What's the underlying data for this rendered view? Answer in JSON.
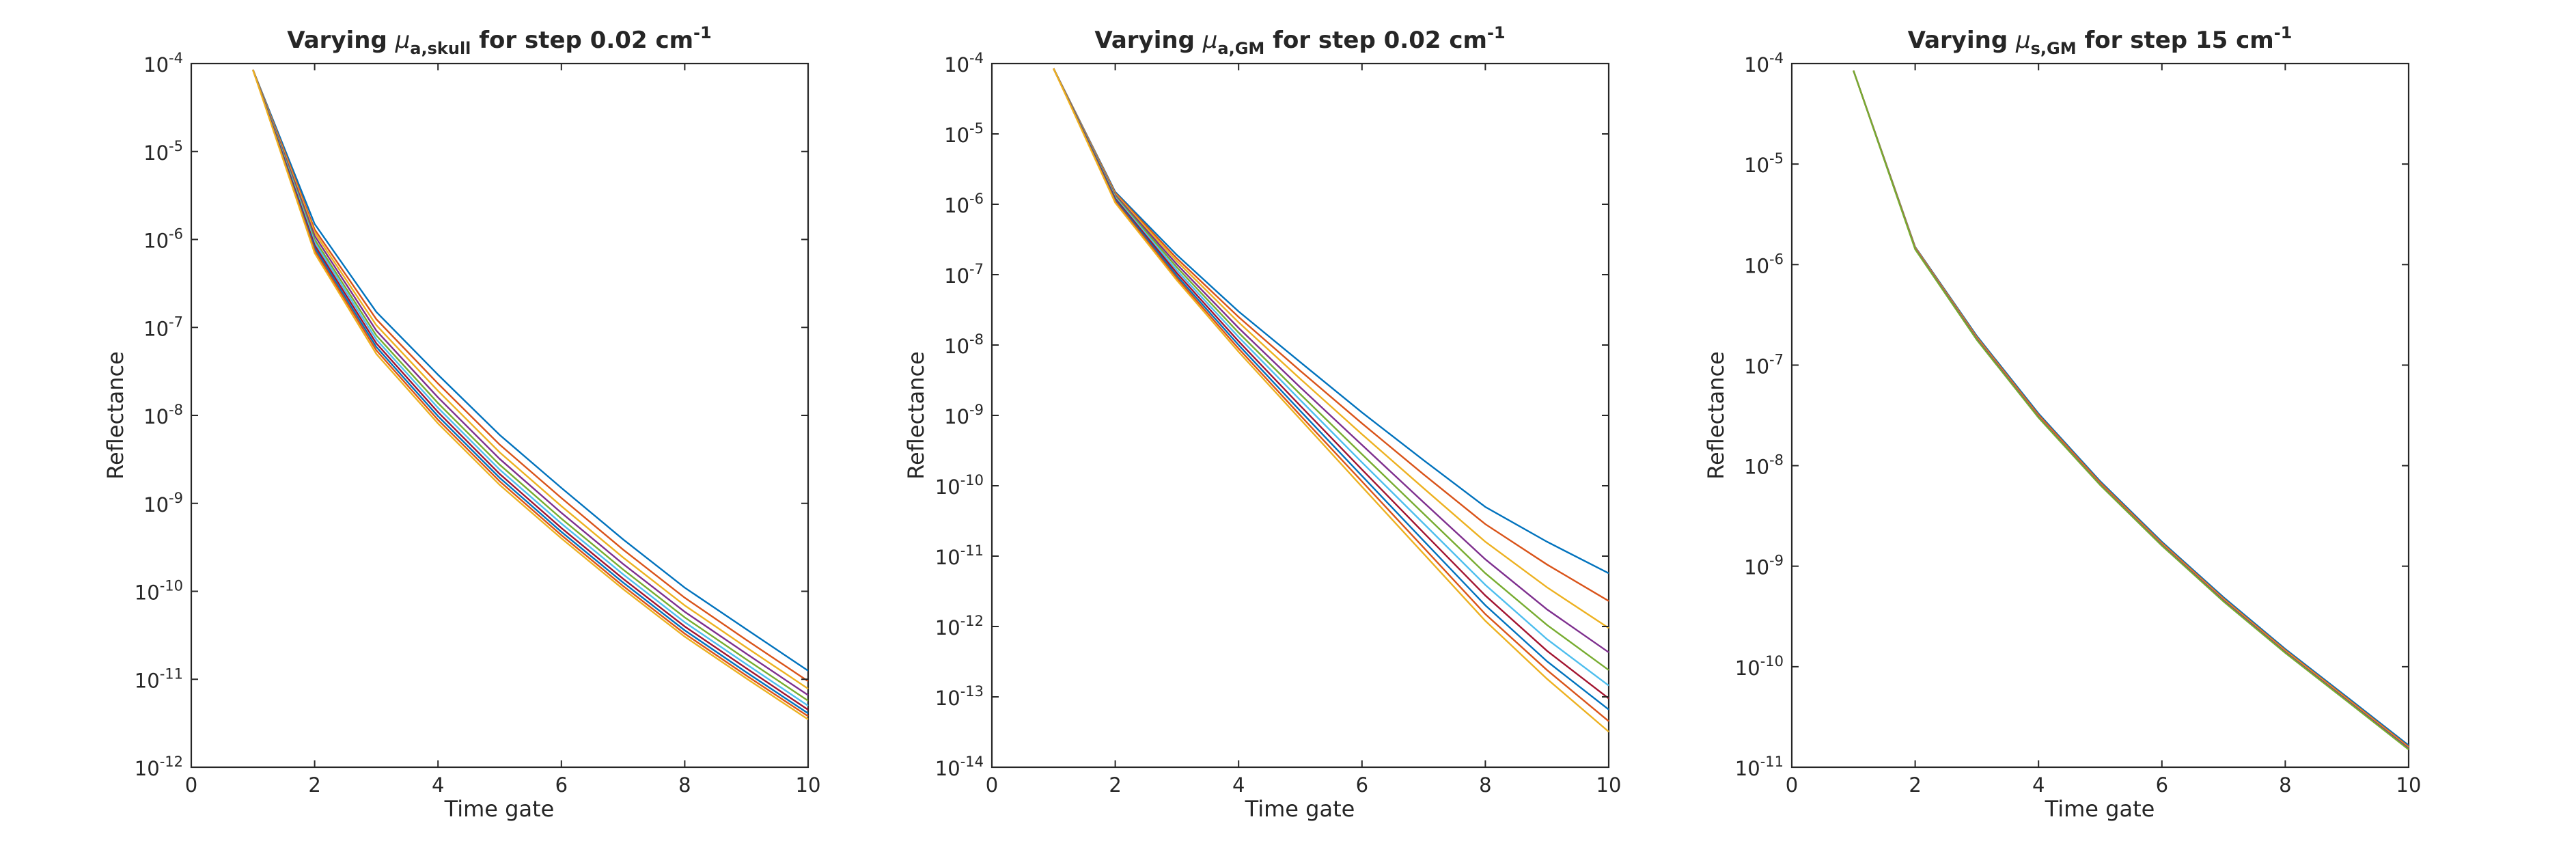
{
  "figure": {
    "panels": [
      {
        "title": {
          "prefix": "Varying ",
          "mu": "μ",
          "subscript": "a,skull",
          "middle": " for step 0.02 cm",
          "superscript": "-1"
        },
        "xlabel": "Time gate",
        "ylabel": "Reflectance"
      },
      {
        "title": {
          "prefix": "Varying ",
          "mu": "μ",
          "subscript": "a,GM",
          "middle": " for step 0.02 cm",
          "superscript": "-1"
        },
        "xlabel": "Time gate",
        "ylabel": "Reflectance"
      },
      {
        "title": {
          "prefix": "Varying ",
          "mu": "μ",
          "subscript": "s,GM",
          "middle": " for step 15 cm",
          "superscript": "-1"
        },
        "xlabel": "Time gate",
        "ylabel": "Reflectance"
      }
    ]
  },
  "colors": [
    "#0072BD",
    "#D95319",
    "#EDB120",
    "#7E2F8E",
    "#77AC30",
    "#4DBEEE",
    "#A2142F",
    "#0072BD",
    "#D95319",
    "#EDB120"
  ],
  "chart_data": [
    {
      "type": "line",
      "title": "Varying μa,skull for step 0.02 cm-1",
      "xlabel": "Time gate",
      "ylabel": "Reflectance",
      "xlim": [
        0,
        10
      ],
      "ylim": [
        1e-12,
        0.0001
      ],
      "yscale": "log",
      "xticks": [
        0,
        2,
        4,
        6,
        8,
        10
      ],
      "yticks_exp": [
        -12,
        -11,
        -10,
        -9,
        -8,
        -7,
        -6,
        -5,
        -4
      ],
      "grid": false,
      "x": [
        1,
        2,
        3,
        4,
        5,
        6,
        7,
        8,
        9,
        10
      ],
      "series": [
        {
          "values": [
            8.5e-05,
            1.5e-06,
            1.5e-07,
            2.9e-08,
            6e-09,
            1.5e-09,
            3.9e-10,
            1.1e-10,
            3.7e-11,
            1.25e-11
          ]
        },
        {
          "values": [
            8.5e-05,
            1.3e-06,
            1.24e-07,
            2.3e-08,
            4.65e-09,
            1.15e-09,
            2.98e-10,
            8.45e-11,
            2.8e-11,
            9.5e-12
          ]
        },
        {
          "values": [
            8.5e-05,
            1.2e-06,
            1.06e-07,
            1.9e-08,
            3.8e-09,
            9.3e-10,
            2.43e-10,
            6.9e-11,
            2.3e-11,
            7.8e-12
          ]
        },
        {
          "values": [
            8.5e-05,
            1.1e-06,
            9.2e-08,
            1.6e-08,
            3.2e-09,
            7.8e-10,
            2.05e-10,
            5.85e-11,
            1.95e-11,
            6.6e-12
          ]
        },
        {
          "values": [
            8.5e-05,
            1e-06,
            8.1e-08,
            1.38e-08,
            2.75e-09,
            6.7e-10,
            1.77e-10,
            5.05e-11,
            1.68e-11,
            5.7e-12
          ]
        },
        {
          "values": [
            8.5e-05,
            9.3e-07,
            7.3e-08,
            1.22e-08,
            2.42e-09,
            5.9e-10,
            1.56e-10,
            4.45e-11,
            1.48e-11,
            5e-12
          ]
        },
        {
          "values": [
            8.5e-05,
            8.6e-07,
            6.6e-08,
            1.09e-08,
            2.16e-09,
            5.25e-10,
            1.39e-10,
            3.98e-11,
            1.33e-11,
            4.5e-12
          ]
        },
        {
          "values": [
            8.5e-05,
            8e-07,
            6e-08,
            9.8e-09,
            1.95e-09,
            4.75e-10,
            1.26e-10,
            3.6e-11,
            1.2e-11,
            4.1e-12
          ]
        },
        {
          "values": [
            8.5e-05,
            7.5e-07,
            5.5e-08,
            8.9e-09,
            1.78e-09,
            4.35e-10,
            1.15e-10,
            3.3e-11,
            1.1e-11,
            3.8e-12
          ]
        },
        {
          "values": [
            8.5e-05,
            7e-07,
            5e-08,
            8.1e-09,
            1.62e-09,
            4e-10,
            1.06e-10,
            3.05e-11,
            1.02e-11,
            3.5e-12
          ]
        }
      ]
    },
    {
      "type": "line",
      "title": "Varying μa,GM for step 0.02 cm-1",
      "xlabel": "Time gate",
      "ylabel": "Reflectance",
      "xlim": [
        0,
        10
      ],
      "ylim": [
        1e-14,
        0.0001
      ],
      "yscale": "log",
      "xticks": [
        0,
        2,
        4,
        6,
        8,
        10
      ],
      "yticks_exp": [
        -14,
        -13,
        -12,
        -11,
        -10,
        -9,
        -8,
        -7,
        -6,
        -5,
        -4
      ],
      "grid": false,
      "x": [
        1,
        2,
        3,
        4,
        5,
        6,
        7,
        8,
        9,
        10
      ],
      "series": [
        {
          "values": [
            8.5e-05,
            1.5e-06,
            1.9e-07,
            3e-08,
            5.7e-09,
            1.1e-09,
            2.3e-10,
            5e-11,
            1.6e-11,
            5.7e-12
          ]
        },
        {
          "values": [
            8.5e-05,
            1.45e-06,
            1.7e-07,
            2.5e-08,
            4.3e-09,
            7.7e-10,
            1.45e-10,
            2.85e-11,
            7.6e-12,
            2.3e-12
          ]
        },
        {
          "values": [
            8.5e-05,
            1.4e-06,
            1.55e-07,
            2.1e-08,
            3.3e-09,
            5.4e-10,
            9.2e-11,
            1.6e-11,
            3.6e-12,
            9.5e-13
          ]
        },
        {
          "values": [
            8.5e-05,
            1.35e-06,
            1.4e-07,
            1.75e-08,
            2.5e-09,
            3.8e-10,
            5.8e-11,
            9e-12,
            1.75e-12,
            4.3e-13
          ]
        },
        {
          "values": [
            8.5e-05,
            1.3e-06,
            1.27e-07,
            1.5e-08,
            2e-09,
            2.8e-10,
            4e-11,
            5.7e-12,
            1.05e-12,
            2.4e-13
          ]
        },
        {
          "values": [
            8.5e-05,
            1.25e-06,
            1.15e-07,
            1.3e-08,
            1.65e-09,
            2.15e-10,
            2.9e-11,
            3.9e-12,
            6.6e-13,
            1.45e-13
          ]
        },
        {
          "values": [
            8.5e-05,
            1.2e-06,
            1.05e-07,
            1.13e-08,
            1.37e-09,
            1.7e-10,
            2.15e-11,
            2.75e-12,
            4.5e-13,
            9.5e-14
          ]
        },
        {
          "values": [
            8.5e-05,
            1.15e-06,
            9.6e-08,
            1e-08,
            1.16e-09,
            1.38e-10,
            1.65e-11,
            2e-12,
            3.2e-13,
            6.6e-14
          ]
        },
        {
          "values": [
            8.5e-05,
            1.1e-06,
            8.9e-08,
            8.9e-09,
            1e-09,
            1.15e-10,
            1.32e-11,
            1.5e-12,
            2.4e-13,
            4.5e-14
          ]
        },
        {
          "values": [
            8.5e-05,
            1.05e-06,
            8.3e-08,
            8e-09,
            8.8e-10,
            9.7e-11,
            1.08e-11,
            1.2e-12,
            1.8e-13,
            3.2e-14
          ]
        }
      ]
    },
    {
      "type": "line",
      "title": "Varying μs,GM for step 15 cm-1",
      "xlabel": "Time gate",
      "ylabel": "Reflectance",
      "xlim": [
        0,
        10
      ],
      "ylim": [
        1e-11,
        0.0001
      ],
      "yscale": "log",
      "xticks": [
        0,
        2,
        4,
        6,
        8,
        10
      ],
      "yticks_exp": [
        -11,
        -10,
        -9,
        -8,
        -7,
        -6,
        -5,
        -4
      ],
      "grid": false,
      "x": [
        1,
        2,
        3,
        4,
        5,
        6,
        7,
        8,
        9,
        10
      ],
      "series": [
        {
          "values": [
            8.5e-05,
            1.5e-06,
            1.95e-07,
            3.3e-08,
            7e-09,
            1.75e-09,
            4.9e-10,
            1.5e-10,
            5e-11,
            1.65e-11
          ]
        },
        {
          "values": [
            8.5e-05,
            1.48e-06,
            1.9e-07,
            3.2e-08,
            6.8e-09,
            1.7e-09,
            4.75e-10,
            1.46e-10,
            4.85e-11,
            1.6e-11
          ]
        },
        {
          "values": [
            8.5e-05,
            1.46e-06,
            1.86e-07,
            3.1e-08,
            6.6e-09,
            1.66e-09,
            4.65e-10,
            1.43e-10,
            4.75e-11,
            1.57e-11
          ]
        },
        {
          "values": [
            8.5e-05,
            1.44e-06,
            1.82e-07,
            3.05e-08,
            6.5e-09,
            1.63e-09,
            4.55e-10,
            1.4e-10,
            4.65e-11,
            1.54e-11
          ]
        },
        {
          "values": [
            8.5e-05,
            1.42e-06,
            1.78e-07,
            3e-08,
            6.4e-09,
            1.6e-09,
            4.45e-10,
            1.37e-10,
            4.55e-11,
            1.5e-11
          ]
        }
      ]
    }
  ]
}
